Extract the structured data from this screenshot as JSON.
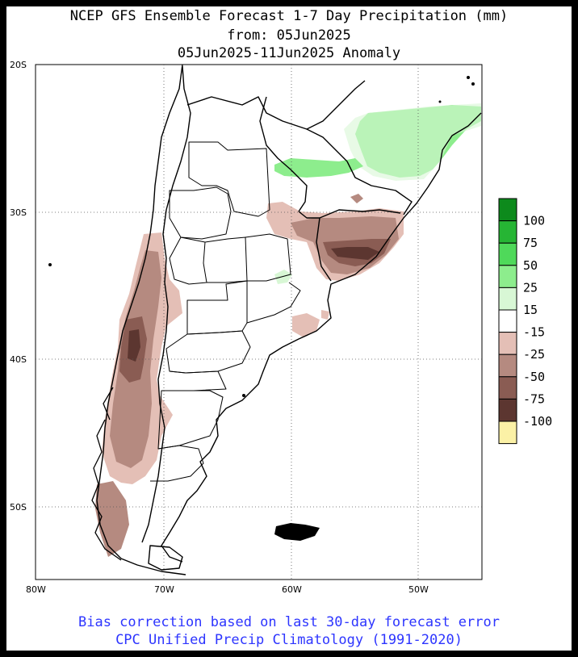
{
  "title": {
    "line1": "NCEP GFS Ensemble Forecast 1-7 Day Precipitation (mm)",
    "line2": "from: 05Jun2025",
    "line3": "05Jun2025-11Jun2025 Anomaly"
  },
  "map": {
    "lat_labels": [
      "20S",
      "30S",
      "40S",
      "50S"
    ],
    "lon_labels": [
      "80W",
      "70W",
      "60W",
      "50W"
    ],
    "region": "Southern South America (Argentina, Chile, Uruguay, S Brazil)"
  },
  "legend": {
    "items": [
      {
        "label": "100",
        "color": "#0d8a1c"
      },
      {
        "label": "75",
        "color": "#26b534"
      },
      {
        "label": "50",
        "color": "#4fd95a"
      },
      {
        "label": "25",
        "color": "#8ded8d"
      },
      {
        "label": "15",
        "color": "#d8f7d5"
      },
      {
        "label": "-15",
        "color": "#ffffff"
      },
      {
        "label": "-25",
        "color": "#e4bfb6"
      },
      {
        "label": "-50",
        "color": "#b58a80"
      },
      {
        "label": "-75",
        "color": "#8a5c53"
      },
      {
        "label": "-100",
        "color": "#5c3630"
      },
      {
        "label": "",
        "color": "#fbf1a6"
      }
    ]
  },
  "footer": {
    "line1": "Bias correction based on last 30-day forecast error",
    "line2": "CPC Unified Precip Climatology (1991-2020)"
  }
}
